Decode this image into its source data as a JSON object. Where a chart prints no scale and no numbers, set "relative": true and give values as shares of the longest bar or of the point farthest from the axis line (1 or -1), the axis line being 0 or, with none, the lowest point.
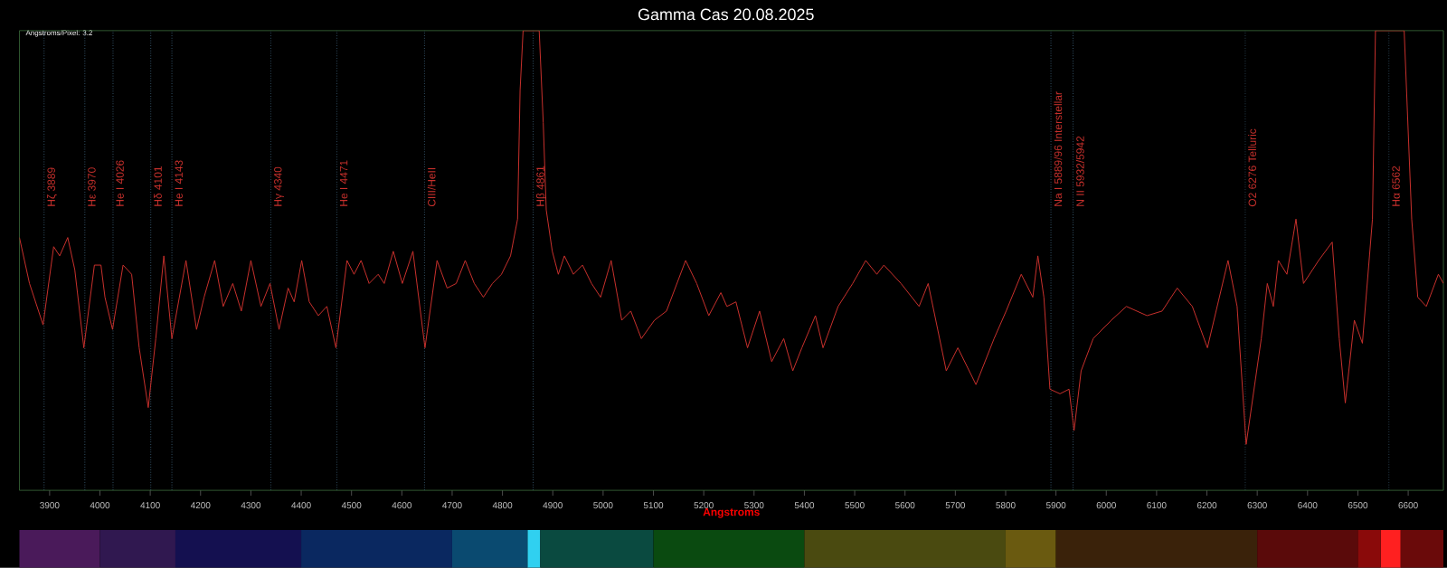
{
  "chart_data": {
    "type": "line",
    "title": "Gamma Cas 20.08.2025",
    "xlabel": "Angstroms",
    "annotations": [
      "Angstroms/Pixel: 3.2"
    ],
    "relative": true,
    "color": "#c8302c",
    "xlim": [
      3840,
      6670
    ],
    "xticks": [
      3900,
      4000,
      4100,
      4200,
      4300,
      4400,
      4500,
      4600,
      4700,
      4800,
      4900,
      5000,
      5100,
      5200,
      5300,
      5400,
      5500,
      5600,
      5700,
      5800,
      5900,
      6000,
      6100,
      6200,
      6300,
      6400,
      6500,
      6600
    ],
    "x": [
      3840,
      3860,
      3887,
      3908,
      3920,
      3936,
      3950,
      3968,
      3989,
      4002,
      4010,
      4025,
      4046,
      4063,
      4078,
      4096,
      4111,
      4127,
      4143,
      4171,
      4192,
      4207,
      4228,
      4245,
      4264,
      4281,
      4300,
      4320,
      4338,
      4356,
      4374,
      4386,
      4401,
      4416,
      4434,
      4451,
      4469,
      4491,
      4505,
      4519,
      4535,
      4553,
      4565,
      4583,
      4601,
      4622,
      4646,
      4670,
      4690,
      4708,
      4726,
      4744,
      4762,
      4780,
      4798,
      4816,
      4830,
      4835,
      4841,
      4873,
      4881,
      4887,
      4899,
      4911,
      4923,
      4941,
      4959,
      4977,
      4995,
      5016,
      5037,
      5055,
      5076,
      5102,
      5126,
      5164,
      5186,
      5210,
      5234,
      5246,
      5264,
      5287,
      5311,
      5335,
      5359,
      5377,
      5395,
      5422,
      5437,
      5467,
      5496,
      5522,
      5544,
      5558,
      5592,
      5628,
      5646,
      5682,
      5705,
      5741,
      5777,
      5801,
      5831,
      5854,
      5864,
      5876,
      5888,
      5908,
      5926,
      5936,
      5950,
      5974,
      6010,
      6040,
      6081,
      6111,
      6141,
      6171,
      6201,
      6242,
      6260,
      6278,
      6308,
      6320,
      6332,
      6342,
      6359,
      6377,
      6392,
      6422,
      6449,
      6463,
      6475,
      6493,
      6509,
      6529,
      6535,
      6592,
      6607,
      6619,
      6636,
      6660,
      6670
    ],
    "values": [
      0.55,
      0.45,
      0.36,
      0.53,
      0.51,
      0.55,
      0.48,
      0.31,
      0.49,
      0.49,
      0.42,
      0.35,
      0.49,
      0.47,
      0.31,
      0.18,
      0.33,
      0.51,
      0.33,
      0.5,
      0.35,
      0.42,
      0.5,
      0.4,
      0.45,
      0.39,
      0.5,
      0.4,
      0.45,
      0.35,
      0.44,
      0.41,
      0.5,
      0.41,
      0.38,
      0.4,
      0.31,
      0.5,
      0.47,
      0.5,
      0.45,
      0.47,
      0.45,
      0.52,
      0.45,
      0.52,
      0.31,
      0.5,
      0.44,
      0.45,
      0.5,
      0.45,
      0.42,
      0.45,
      0.47,
      0.51,
      0.59,
      0.87,
      1,
      1,
      0.8,
      0.61,
      0.52,
      0.47,
      0.51,
      0.47,
      0.49,
      0.45,
      0.42,
      0.5,
      0.37,
      0.39,
      0.33,
      0.37,
      0.39,
      0.5,
      0.45,
      0.38,
      0.43,
      0.4,
      0.41,
      0.31,
      0.39,
      0.28,
      0.33,
      0.26,
      0.31,
      0.38,
      0.31,
      0.4,
      0.45,
      0.5,
      0.47,
      0.49,
      0.45,
      0.4,
      0.45,
      0.26,
      0.31,
      0.23,
      0.33,
      0.39,
      0.47,
      0.42,
      0.51,
      0.42,
      0.22,
      0.21,
      0.22,
      0.13,
      0.26,
      0.33,
      0.37,
      0.4,
      0.38,
      0.39,
      0.44,
      0.4,
      0.31,
      0.5,
      0.4,
      0.1,
      0.33,
      0.45,
      0.4,
      0.5,
      0.47,
      0.59,
      0.45,
      0.5,
      0.54,
      0.33,
      0.19,
      0.37,
      0.32,
      0.59,
      1,
      1,
      0.59,
      0.42,
      0.4,
      0.47,
      0.45
    ],
    "ref_lines": [
      {
        "axis": "x",
        "value": 3889,
        "label": "Hζ 3889",
        "color": "#4f7fa0",
        "line_style": "dotted"
      },
      {
        "axis": "x",
        "value": 3970,
        "label": "Hε 3970",
        "color": "#4f7fa0",
        "line_style": "dotted"
      },
      {
        "axis": "x",
        "value": 4026,
        "label": "He I 4026",
        "color": "#4f7fa0",
        "line_style": "dotted"
      },
      {
        "axis": "x",
        "value": 4101,
        "label": "Hδ 4101",
        "color": "#4f7fa0",
        "line_style": "dotted"
      },
      {
        "axis": "x",
        "value": 4143,
        "label": "He I 4143",
        "color": "#4f7fa0",
        "line_style": "dotted"
      },
      {
        "axis": "x",
        "value": 4340,
        "label": "Hγ 4340",
        "color": "#4f7fa0",
        "line_style": "dotted"
      },
      {
        "axis": "x",
        "value": 4471,
        "label": "He I 4471",
        "color": "#4f7fa0",
        "line_style": "dotted"
      },
      {
        "axis": "x",
        "value": 4645,
        "label": "CIII/HeII",
        "color": "#4f7fa0",
        "line_style": "dotted"
      },
      {
        "axis": "x",
        "value": 4861,
        "label": "Hβ 4861",
        "color": "#4f7fa0",
        "line_style": "dotted"
      },
      {
        "axis": "x",
        "value": 5890,
        "label": "Na I 5889/96 Interstellar",
        "color": "#4f7fa0",
        "line_style": "dotted"
      },
      {
        "axis": "x",
        "value": 5934,
        "label": "N II 5932/5942",
        "color": "#4f7fa0",
        "line_style": "dotted"
      },
      {
        "axis": "x",
        "value": 6276,
        "label": "O2 6276 Telluric",
        "color": "#4f7fa0",
        "line_style": "dotted"
      },
      {
        "axis": "x",
        "value": 6562,
        "label": "Hα 6562",
        "color": "#4f7fa0",
        "line_style": "dotted"
      }
    ]
  }
}
